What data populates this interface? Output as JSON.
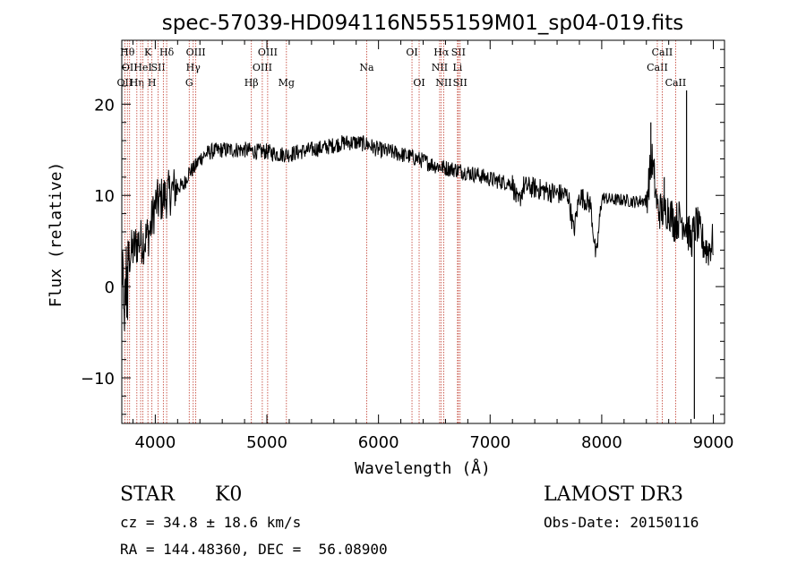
{
  "chart_data": {
    "type": "line",
    "title": "spec-57039-HD094116N555159M01_sp04-019.fits",
    "xlabel": "Wavelength (Å)",
    "ylabel": "Flux (relative)",
    "xlim": [
      3700,
      9100
    ],
    "ylim": [
      -15,
      27
    ],
    "xticks": [
      4000,
      5000,
      6000,
      7000,
      8000,
      9000
    ],
    "xtick_labels": [
      "4000",
      "5000",
      "6000",
      "7000",
      "8000",
      "9000"
    ],
    "yticks": [
      -10,
      0,
      10,
      20
    ],
    "ytick_labels": [
      "−10",
      "0",
      "10",
      "20"
    ],
    "series": [
      {
        "name": "spectrum",
        "x": [
          3700,
          3750,
          3800,
          3850,
          3900,
          3950,
          4000,
          4050,
          4100,
          4150,
          4200,
          4250,
          4300,
          4350,
          4400,
          4450,
          4500,
          4600,
          4700,
          4800,
          4900,
          5000,
          5100,
          5200,
          5300,
          5400,
          5500,
          5600,
          5700,
          5800,
          5900,
          6000,
          6100,
          6200,
          6300,
          6400,
          6500,
          6600,
          6700,
          6800,
          6900,
          7000,
          7100,
          7200,
          7250,
          7300,
          7400,
          7500,
          7600,
          7700,
          7750,
          7800,
          7850,
          7900,
          7950,
          8000,
          8100,
          8200,
          8300,
          8400,
          8450,
          8500,
          8550,
          8600,
          8650,
          8700,
          8750,
          8800,
          8850,
          8900,
          8950,
          9000
        ],
        "y": [
          1.0,
          3.0,
          4.0,
          5.0,
          5.0,
          6.0,
          9.0,
          9.5,
          10.0,
          10.5,
          11.0,
          11.0,
          12.5,
          13.0,
          14.0,
          14.5,
          14.8,
          15.0,
          15.0,
          15.0,
          14.8,
          14.8,
          14.5,
          14.5,
          14.8,
          15.0,
          15.2,
          15.5,
          15.8,
          15.8,
          15.6,
          15.0,
          14.8,
          14.5,
          14.2,
          13.8,
          13.3,
          13.0,
          12.8,
          12.5,
          12.2,
          11.8,
          11.5,
          11.3,
          9.0,
          11.0,
          10.8,
          10.5,
          10.2,
          10.0,
          6.0,
          10.0,
          9.5,
          9.0,
          3.0,
          9.8,
          9.5,
          9.5,
          9.3,
          9.5,
          14.0,
          8.5,
          8.2,
          8.5,
          7.0,
          7.5,
          7.0,
          5.0,
          7.0,
          5.0,
          4.0,
          5.0
        ]
      }
    ],
    "line_markers": [
      {
        "wl": 3727,
        "label": "OII",
        "row": 3
      },
      {
        "wl": 3750,
        "label": "Hθ",
        "row": 1
      },
      {
        "wl": 3770,
        "label": "OII",
        "row": 2
      },
      {
        "wl": 3835,
        "label": "Hη",
        "row": 3
      },
      {
        "wl": 3869,
        "label": "",
        "row": 0
      },
      {
        "wl": 3889,
        "label": "HeI",
        "row": 2
      },
      {
        "wl": 3934,
        "label": "K",
        "row": 1
      },
      {
        "wl": 3970,
        "label": "H",
        "row": 3
      },
      {
        "wl": 4026,
        "label": "SII",
        "row": 2
      },
      {
        "wl": 4072,
        "label": "",
        "row": 0
      },
      {
        "wl": 4102,
        "label": "Hδ",
        "row": 1
      },
      {
        "wl": 4304,
        "label": "G",
        "row": 3
      },
      {
        "wl": 4340,
        "label": "Hγ",
        "row": 2
      },
      {
        "wl": 4363,
        "label": "OIII",
        "row": 1
      },
      {
        "wl": 4861,
        "label": "Hβ",
        "row": 3
      },
      {
        "wl": 4959,
        "label": "OIII",
        "row": 2
      },
      {
        "wl": 5007,
        "label": "OIII",
        "row": 1
      },
      {
        "wl": 5175,
        "label": "Mg",
        "row": 3
      },
      {
        "wl": 5894,
        "label": "Na",
        "row": 2
      },
      {
        "wl": 6300,
        "label": "OI",
        "row": 1
      },
      {
        "wl": 6364,
        "label": "OI",
        "row": 3
      },
      {
        "wl": 6548,
        "label": "NII",
        "row": 2
      },
      {
        "wl": 6563,
        "label": "Hα",
        "row": 1
      },
      {
        "wl": 6584,
        "label": "NII",
        "row": 3
      },
      {
        "wl": 6708,
        "label": "Li",
        "row": 2
      },
      {
        "wl": 6716,
        "label": "SII",
        "row": 1
      },
      {
        "wl": 6731,
        "label": "SII",
        "row": 3
      },
      {
        "wl": 8498,
        "label": "CaII",
        "row": 2
      },
      {
        "wl": 8542,
        "label": "CaII",
        "row": 1
      },
      {
        "wl": 8662,
        "label": "CaII",
        "row": 3
      }
    ]
  },
  "info": {
    "class_label": "STAR",
    "subclass_label": "K0",
    "survey_label": "LAMOST DR3",
    "cz_text": "cz = 34.8 ± 18.6 km/s",
    "obs_date_text": "Obs-Date: 20150116",
    "radec_text": "RA = 144.48360, DEC =  56.08900"
  },
  "colors": {
    "axis": "#000000",
    "spectrum": "#000000",
    "marker": "#c0392b"
  }
}
